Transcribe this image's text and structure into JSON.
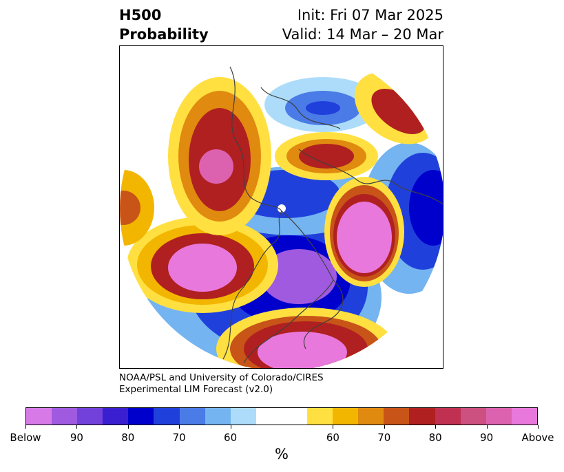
{
  "header": {
    "title_line1": "H500",
    "title_line2": "Probability",
    "init": "Init: Fri 07 Mar 2025",
    "valid": "Valid: 14 Mar – 20 Mar"
  },
  "credit": {
    "line1": "NOAA/PSL and University of Colorado/CIRES",
    "line2": "Experimental LIM Forecast (v2.0)"
  },
  "colorbar": {
    "colors": [
      "#d77ae8",
      "#a05ae0",
      "#7240da",
      "#3a1fd0",
      "#0000cc",
      "#2040dc",
      "#4a7be6",
      "#74b4f0",
      "#acdcfa",
      "#ffffff",
      "#ffffff",
      "#ffe040",
      "#f2b600",
      "#e08a10",
      "#c85418",
      "#b02020",
      "#c03050",
      "#cc5080",
      "#dc62b0",
      "#e878dc"
    ],
    "tick_labels": [
      "Below",
      "90",
      "80",
      "70",
      "60",
      "60",
      "70",
      "80",
      "90",
      "Above"
    ],
    "unit": "%"
  },
  "map": {
    "colors": {
      "above_high": "#e878dc",
      "above_mid": "#b02020",
      "above_low": "#f2b600",
      "below_high": "#a05ae0",
      "below_mid": "#0000cc",
      "below_low": "#74b4f0",
      "coastline": "#404040"
    }
  }
}
